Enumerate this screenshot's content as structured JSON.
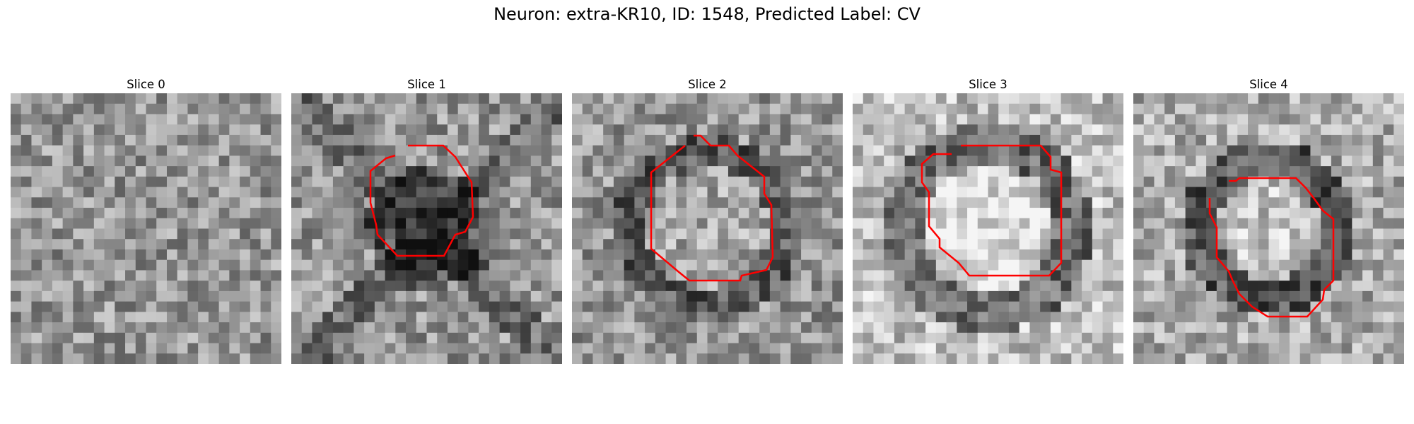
{
  "figure": {
    "title": "Neuron: extra-KR10, ID: 1548, Predicted Label: CV"
  },
  "panels": [
    {
      "title": "Slice 0",
      "has_contour": false
    },
    {
      "title": "Slice 1",
      "has_contour": true
    },
    {
      "title": "Slice 2",
      "has_contour": true
    },
    {
      "title": "Slice 3",
      "has_contour": true
    },
    {
      "title": "Slice 4",
      "has_contour": true
    }
  ],
  "colors": {
    "contour": "#ff0000",
    "background": "#ffffff"
  }
}
